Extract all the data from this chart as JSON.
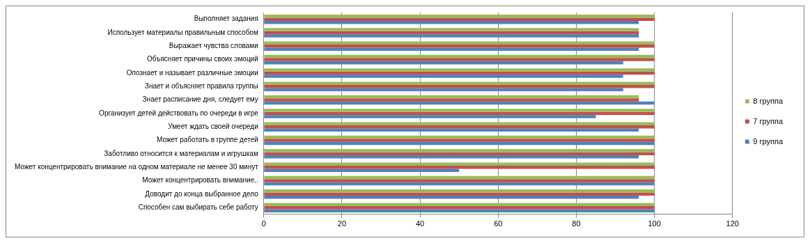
{
  "chart_data": {
    "type": "bar",
    "orientation": "horizontal",
    "categories": [
      "Выполняет задания",
      "Использует материалы правильным способом",
      "Выражает чувства словами",
      "Объясняет причины своих эмоций",
      "Опознает и называет различные эмоции",
      "Знает и объясняет правила группы",
      "Знает расписание дня, следует ему",
      "Организует детей действовать по очереди в игре",
      "Умеет ждать своей очереди",
      "Может работать в группе детей",
      "Заботливо относится к материалам и игрушкам",
      "Может концентрировать внимание на одном материале не менее 30 минут",
      "Может концентрировать внимание..",
      "Доводит до конца выбранное дело",
      "Способен сам выбирать себе работу"
    ],
    "series": [
      {
        "name": "8 группа",
        "color": "#9bbb59",
        "values": [
          100,
          96,
          100,
          100,
          100,
          100,
          96,
          100,
          100,
          100,
          100,
          100,
          100,
          100,
          100
        ]
      },
      {
        "name": "7 группа",
        "color": "#c0504d",
        "values": [
          100,
          96,
          100,
          100,
          100,
          100,
          96,
          100,
          100,
          100,
          100,
          100,
          100,
          100,
          100
        ]
      },
      {
        "name": "9 группа",
        "color": "#4f81bd",
        "values": [
          96,
          96,
          96,
          92,
          92,
          92,
          100,
          85,
          96,
          100,
          96,
          50,
          100,
          96,
          100
        ]
      }
    ],
    "xlim": [
      0,
      120
    ],
    "xticks": [
      0,
      20,
      40,
      60,
      80,
      100,
      120
    ],
    "grid": "x",
    "legend": "right"
  }
}
